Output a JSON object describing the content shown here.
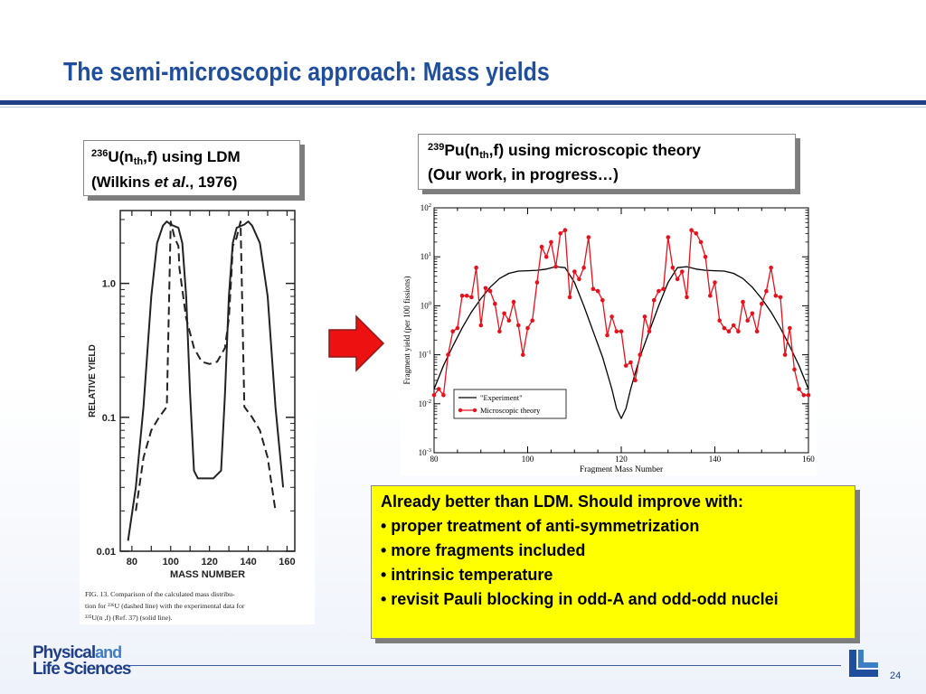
{
  "slide": {
    "title": "The semi-microscopic approach: Mass yields",
    "page_number": "24",
    "accent_color": "#1f4e9c"
  },
  "left_callout": {
    "sup": "236",
    "main": "U(n",
    "sub": "th",
    "tail": ",f) using LDM",
    "line2_prefix": "(Wilkins ",
    "line2_italic": "et al",
    "line2_suffix": "., 1976)"
  },
  "right_callout": {
    "sup": "239",
    "main": "Pu(n",
    "sub": "th",
    "tail": ",f) using microscopic theory",
    "line2": "(Our work, in progress…)"
  },
  "notes": {
    "heading": "Already better than LDM.  Should improve with:",
    "bullets": [
      "• proper treatment of anti-symmetrization",
      "• more fragments included",
      "• intrinsic temperature",
      "• revisit Pauli blocking in odd-A  and odd-odd nuclei"
    ],
    "background": "#ffff00"
  },
  "logo": {
    "line1": "Physical",
    "and": "and",
    "line2": "Life Sciences"
  },
  "arrow_icon": "right-arrow-icon",
  "chart_data": [
    {
      "type": "line",
      "ylabel": "RELATIVE YIELD",
      "xlabel": "MASS NUMBER",
      "xlim": [
        74,
        164
      ],
      "ylim": [
        0.01,
        3.5
      ],
      "yscale": "log",
      "xticks": [
        "80",
        "100",
        "120",
        "140",
        "160"
      ],
      "yticks": [
        "1.0",
        "0.1",
        "0.01"
      ],
      "caption": [
        "FIG. 13.  Comparison of the calculated mass distribu-",
        "tion for ²³⁶U (dashed line) with the experimental data for",
        "²³⁵U(n   ,f) (Ref. 37) (solid line)."
      ],
      "series": [
        {
          "style": "solid",
          "x": [
            78,
            82,
            86,
            90,
            93,
            96,
            98,
            100,
            104,
            106,
            108,
            110,
            112,
            114,
            118,
            122,
            126,
            128,
            130,
            132,
            134,
            138,
            140,
            142,
            146,
            150,
            154,
            158
          ],
          "y": [
            0.012,
            0.03,
            0.12,
            0.8,
            2.0,
            2.7,
            2.9,
            2.75,
            2.6,
            2.0,
            0.8,
            0.15,
            0.04,
            0.035,
            0.035,
            0.035,
            0.04,
            0.15,
            0.8,
            2.0,
            2.6,
            2.75,
            2.9,
            2.7,
            2.0,
            0.8,
            0.12,
            0.03
          ]
        },
        {
          "style": "dashed",
          "x": [
            82,
            86,
            90,
            94,
            98,
            100,
            102,
            104,
            104.5,
            108,
            112,
            116,
            120,
            124,
            128,
            130,
            131.5,
            132,
            134,
            136,
            138,
            142,
            146,
            150,
            154
          ],
          "y": [
            0.02,
            0.05,
            0.08,
            0.1,
            0.12,
            2.9,
            2.2,
            1.9,
            1.3,
            0.55,
            0.33,
            0.26,
            0.25,
            0.26,
            0.33,
            0.55,
            1.3,
            1.9,
            2.2,
            2.9,
            0.12,
            0.1,
            0.08,
            0.05,
            0.02
          ]
        }
      ]
    },
    {
      "type": "line",
      "ylabel": "Fragment yield (per 100 fissions)",
      "xlabel": "Fragment Mass Number",
      "xlim": [
        80,
        160
      ],
      "ylim": [
        0.001,
        100
      ],
      "yscale": "log",
      "xticks": [
        "80",
        "100",
        "120",
        "140",
        "160"
      ],
      "yticks_exponents": [
        "2",
        "1",
        "0",
        "-1",
        "-2",
        "-3"
      ],
      "ytick_base": "10",
      "legend_position": "lower-left",
      "series": [
        {
          "name": "\"Experiment\"",
          "color": "#000000",
          "x": [
            80,
            82,
            84,
            86,
            88,
            90,
            92,
            94,
            96,
            98,
            100,
            102,
            104,
            106,
            108,
            110,
            112,
            114,
            116,
            118,
            119,
            120,
            121,
            122,
            124,
            126,
            128,
            130,
            132,
            134,
            136,
            138,
            140,
            142,
            144,
            146,
            148,
            150,
            152,
            154,
            156,
            158,
            160
          ],
          "y": [
            0.02,
            0.06,
            0.15,
            0.35,
            0.75,
            1.4,
            2.4,
            3.6,
            4.6,
            5.1,
            5.2,
            5.3,
            5.6,
            6.3,
            6.0,
            3.0,
            1.0,
            0.3,
            0.09,
            0.02,
            0.008,
            0.005,
            0.008,
            0.02,
            0.09,
            0.3,
            1.0,
            3.0,
            6.0,
            6.3,
            5.6,
            5.3,
            5.2,
            5.1,
            4.6,
            3.6,
            2.4,
            1.4,
            0.75,
            0.35,
            0.15,
            0.06,
            0.02
          ]
        },
        {
          "name": "Microscopic theory",
          "color": "#e8111b",
          "x": [
            80,
            81,
            82,
            83,
            84,
            85,
            86,
            87,
            88,
            89,
            90,
            91,
            92,
            93,
            94,
            95,
            96,
            97,
            98,
            99,
            100,
            101,
            102,
            103,
            104,
            105,
            106,
            107,
            108,
            109,
            110,
            111,
            112,
            113,
            114,
            115,
            116,
            117,
            118,
            119,
            120,
            121,
            122,
            123,
            124,
            125,
            126,
            127,
            128,
            129,
            130,
            131,
            132,
            133,
            134,
            135,
            136,
            137,
            138,
            139,
            140,
            141,
            142,
            143,
            144,
            145,
            146,
            147,
            148,
            149,
            150,
            151,
            152,
            153,
            154,
            155,
            156,
            157,
            158,
            159,
            160
          ],
          "y": [
            0.015,
            0.02,
            0.015,
            0.1,
            0.3,
            0.35,
            1.6,
            1.6,
            1.5,
            6.0,
            0.4,
            2.3,
            2.0,
            1.1,
            0.3,
            0.7,
            0.5,
            1.2,
            0.4,
            0.1,
            0.35,
            0.5,
            3.0,
            16.0,
            10.0,
            20.0,
            6.3,
            30.0,
            35.0,
            1.5,
            5.0,
            3.5,
            6.0,
            25.0,
            2.2,
            2.0,
            1.3,
            0.25,
            0.6,
            0.3,
            0.3,
            0.06,
            0.07,
            0.03,
            0.1,
            0.6,
            0.3,
            1.3,
            2.0,
            2.2,
            25.0,
            6.0,
            3.5,
            5.0,
            1.5,
            35.0,
            30.0,
            20.0,
            10.0,
            1.6,
            3.0,
            0.5,
            0.35,
            0.3,
            0.4,
            0.3,
            1.2,
            0.5,
            0.7,
            0.3,
            1.1,
            2.0,
            6.0,
            1.6,
            1.5,
            0.1,
            0.35,
            0.05,
            0.02,
            0.015,
            0.015
          ]
        }
      ]
    }
  ]
}
